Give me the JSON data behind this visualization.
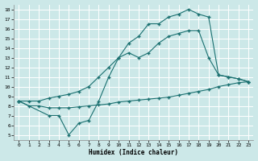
{
  "xlabel": "Humidex (Indice chaleur)",
  "xlim": [
    -0.5,
    23.5
  ],
  "ylim": [
    4.5,
    18.5
  ],
  "xticks": [
    0,
    1,
    2,
    3,
    4,
    5,
    6,
    7,
    8,
    9,
    10,
    11,
    12,
    13,
    14,
    15,
    16,
    17,
    18,
    19,
    20,
    21,
    22,
    23
  ],
  "yticks": [
    5,
    6,
    7,
    8,
    9,
    10,
    11,
    12,
    13,
    14,
    15,
    16,
    17,
    18
  ],
  "bg_color": "#cce8e8",
  "grid_color": "#ffffff",
  "line_color": "#1a7070",
  "line1_x": [
    0,
    1,
    2,
    3,
    4,
    5,
    6,
    7,
    8,
    9,
    10,
    11,
    12,
    13,
    14,
    15,
    16,
    17,
    18,
    19,
    20,
    21,
    22,
    23
  ],
  "line1_y": [
    8.5,
    8.0,
    8.0,
    7.8,
    7.8,
    7.8,
    7.9,
    8.0,
    8.1,
    8.2,
    8.4,
    8.5,
    8.6,
    8.7,
    8.8,
    8.9,
    9.1,
    9.3,
    9.5,
    9.7,
    10.0,
    10.2,
    10.4,
    10.5
  ],
  "line2_x": [
    0,
    3,
    4,
    5,
    6,
    7,
    8,
    9,
    10,
    11,
    12,
    13,
    14,
    15,
    16,
    17,
    18,
    19,
    20,
    21,
    22,
    23
  ],
  "line2_y": [
    8.5,
    7.0,
    7.0,
    5.0,
    6.2,
    6.5,
    8.5,
    11.0,
    13.0,
    13.5,
    13.0,
    13.5,
    14.5,
    15.2,
    15.5,
    15.8,
    15.8,
    13.0,
    11.2,
    11.0,
    10.8,
    10.5
  ],
  "line3_x": [
    0,
    1,
    2,
    3,
    4,
    5,
    6,
    7,
    8,
    9,
    10,
    11,
    12,
    13,
    14,
    15,
    16,
    17,
    18,
    19,
    20,
    21,
    22,
    23
  ],
  "line3_y": [
    8.5,
    8.5,
    8.5,
    8.8,
    9.0,
    9.2,
    9.5,
    10.0,
    11.0,
    12.0,
    13.0,
    14.5,
    15.2,
    16.5,
    16.5,
    17.2,
    17.5,
    18.0,
    17.5,
    17.2,
    11.2,
    11.0,
    10.8,
    10.5
  ]
}
